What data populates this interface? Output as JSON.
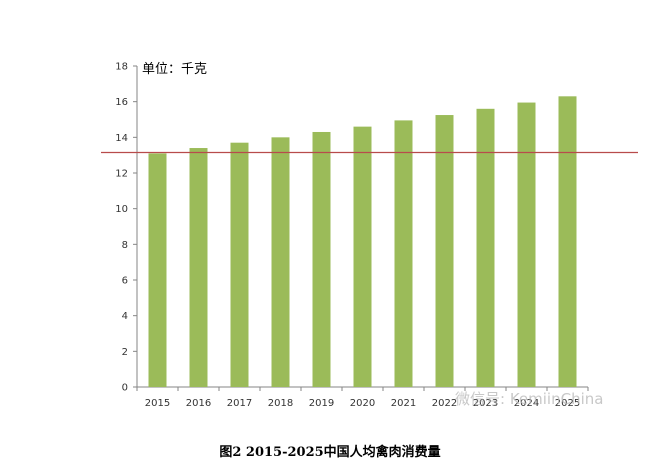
{
  "chart_data": {
    "type": "bar",
    "categories": [
      "2015",
      "2016",
      "2017",
      "2018",
      "2019",
      "2020",
      "2021",
      "2022",
      "2023",
      "2024",
      "2025"
    ],
    "values": [
      13.1,
      13.4,
      13.7,
      14.0,
      14.3,
      14.6,
      14.95,
      15.25,
      15.6,
      15.95,
      16.3
    ],
    "unit_label": "单位：千克",
    "ylim": [
      0,
      18
    ],
    "yticks": [
      0,
      2,
      4,
      6,
      8,
      10,
      12,
      14,
      16,
      18
    ],
    "reference_line": {
      "value": 13.15,
      "color": "#b84b4b"
    },
    "bar_color": "#9bbb59",
    "axis_color": "#868686",
    "grid": false,
    "legend": "none"
  },
  "caption": "图2  2015-2025中国人均禽肉消费量",
  "watermark": "微信号: KemiinChina"
}
